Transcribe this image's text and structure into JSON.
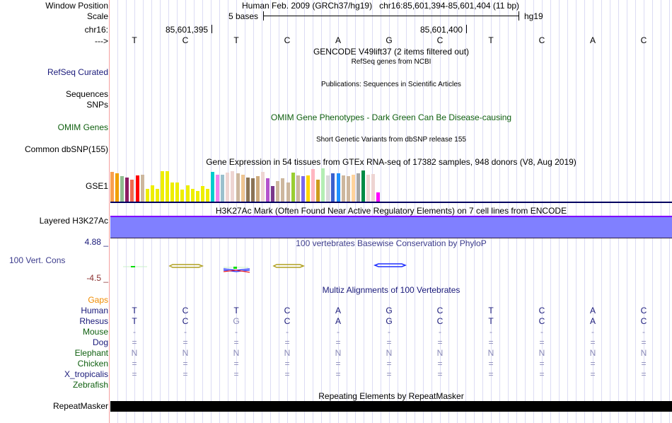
{
  "labels": {
    "window_position": "Window Position",
    "scale": "Scale",
    "chrom": "chr16:",
    "strand": "--->",
    "refseq_curated": "RefSeq Curated",
    "sequences": "Sequences",
    "snps": "SNPs",
    "omim_genes": "OMIM Genes",
    "common_dbsnp": "Common dbSNP(155)",
    "gse1": "GSE1",
    "layered_h3k27ac": "Layered H3K27Ac",
    "cons_max": "4.88 _",
    "cons_track": "100 Vert. Cons",
    "cons_min": "-4.5 _",
    "repeatmasker": "RepeatMasker"
  },
  "header": {
    "assembly": "Human Feb. 2009 (GRCh37/hg19)",
    "position": "chr16:85,601,394-85,601,404 (11 bp)",
    "scale_label": "5 bases",
    "scale_db": "hg19",
    "coord1": "85,601,395",
    "coord2": "85,601,400"
  },
  "sequence": [
    "T",
    "C",
    "T",
    "C",
    "A",
    "G",
    "C",
    "T",
    "C",
    "A",
    "C"
  ],
  "tracks": {
    "gencode": "GENCODE V49lift37 (2 items filtered out)",
    "refseq": "RefSeq genes from NCBI",
    "publications": "Publications: Sequences in Scientific Articles",
    "omim": "OMIM Gene Phenotypes - Dark Green Can Be Disease-causing",
    "dbsnp": "Short Genetic Variants from dbSNP release 155",
    "gtex": "Gene Expression in 54 tissues from GTEx RNA-seq of 17382 samples, 948 donors (V8, Aug 2019)",
    "h3k27ac": "H3K27Ac Mark (Often Found Near Active Regulatory Elements) on 7 cell lines from ENCODE",
    "phylop": "100 vertebrates Basewise Conservation by PhyloP",
    "multiz": "Multiz Alignments of 100 Vertebrates",
    "repeats": "Repeating Elements by RepeatMasker"
  },
  "multiz": {
    "gaps_label": "Gaps",
    "species": [
      {
        "name": "Human",
        "color": "#1a1a7a",
        "bases": [
          "T",
          "C",
          "T",
          "C",
          "A",
          "G",
          "C",
          "T",
          "C",
          "A",
          "C"
        ],
        "match": [
          1,
          1,
          1,
          1,
          1,
          1,
          1,
          1,
          1,
          1,
          1
        ]
      },
      {
        "name": "Rhesus",
        "color": "#1a1a7a",
        "bases": [
          "T",
          "C",
          "G",
          "C",
          "A",
          "G",
          "C",
          "T",
          "C",
          "A",
          "C"
        ],
        "match": [
          1,
          1,
          0,
          1,
          1,
          1,
          1,
          1,
          1,
          1,
          1
        ]
      },
      {
        "name": "Mouse",
        "color": "#106010",
        "bases": [
          "-",
          "-",
          "-",
          "-",
          "-",
          "-",
          "-",
          "-",
          "-",
          "-",
          "-"
        ],
        "match": [
          0,
          0,
          0,
          0,
          0,
          0,
          0,
          0,
          0,
          0,
          0
        ]
      },
      {
        "name": "Dog",
        "color": "#1a1a7a",
        "bases": [
          "=",
          "=",
          "=",
          "=",
          "=",
          "=",
          "=",
          "=",
          "=",
          "=",
          "="
        ],
        "match": [
          0,
          0,
          0,
          0,
          0,
          0,
          0,
          0,
          0,
          0,
          0
        ]
      },
      {
        "name": "Elephant",
        "color": "#106010",
        "bases": [
          "N",
          "N",
          "N",
          "N",
          "N",
          "N",
          "N",
          "N",
          "N",
          "N",
          "N"
        ],
        "match": [
          0,
          0,
          0,
          0,
          0,
          0,
          0,
          0,
          0,
          0,
          0
        ]
      },
      {
        "name": "Chicken",
        "color": "#106010",
        "bases": [
          "=",
          "=",
          "=",
          "=",
          "=",
          "=",
          "=",
          "=",
          "=",
          "=",
          "="
        ],
        "match": [
          0,
          0,
          0,
          0,
          0,
          0,
          0,
          0,
          0,
          0,
          0
        ]
      },
      {
        "name": "X_tropicalis",
        "color": "#1a1a7a",
        "bases": [
          "=",
          "=",
          "=",
          "=",
          "=",
          "=",
          "=",
          "=",
          "=",
          "=",
          "="
        ],
        "match": [
          0,
          0,
          0,
          0,
          0,
          0,
          0,
          0,
          0,
          0,
          0
        ]
      },
      {
        "name": "Zebrafish",
        "color": "#106010",
        "bases": [],
        "match": []
      }
    ]
  },
  "gtex": {
    "values": [
      132,
      127,
      112,
      108,
      97,
      115,
      118,
      58,
      75,
      58,
      135,
      135,
      85,
      85,
      55,
      75,
      58,
      48,
      70,
      58,
      132,
      118,
      118,
      129,
      135,
      127,
      118,
      108,
      105,
      112,
      132,
      105,
      70,
      93,
      105,
      85,
      129,
      115,
      112,
      115,
      145,
      97,
      147,
      115,
      127,
      127,
      115,
      112,
      118,
      127,
      138,
      120,
      123,
      43
    ],
    "colors": [
      "#f9a050",
      "#f0a000",
      "#8fbc8f",
      "#8b1c62",
      "#ee6a50",
      "#ff0000",
      "#cdb79e",
      "#eeee00",
      "#eeee00",
      "#eeee00",
      "#eeee00",
      "#eeee00",
      "#eeee00",
      "#eeee00",
      "#eeee00",
      "#eeee00",
      "#eeee00",
      "#eeee00",
      "#eeee00",
      "#eeee00",
      "#00cdcd",
      "#ee82ee",
      "#9ac0cd",
      "#eed5d2",
      "#eed5d2",
      "#cdb79e",
      "#eec591",
      "#8b7355",
      "#8b7355",
      "#cdaa7d",
      "#eed5d2",
      "#b452cd",
      "#7a378b",
      "#cdb79e",
      "#cdb79e",
      "#cdb79e",
      "#9acd32",
      "#cdb79e",
      "#7b68ee",
      "#ffd700",
      "#ffb6c1",
      "#cd9b1d",
      "#b4eeb4",
      "#d9d9d9",
      "#3a5fcd",
      "#1e90ff",
      "#cdb79e",
      "#cdb79e",
      "#ffd39b",
      "#a6a6a6",
      "#008b45",
      "#eed5d2",
      "#eed5d2",
      "#ff00ff"
    ]
  },
  "colors": {
    "navy": "#1a1a7a",
    "omim_green": "#106010",
    "gaps_orange": "#f08c00",
    "h3k27ac_fill": "#8080ff",
    "cons_min_color": "#8b3030"
  }
}
